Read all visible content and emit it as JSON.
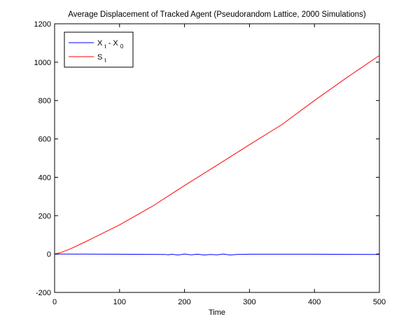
{
  "chart_data": {
    "type": "line",
    "title": "Average Displacement of Tracked Agent (Pseudorandom Lattice, 2000 Simulations)",
    "xlabel": "Time",
    "ylabel": "",
    "xlim": [
      0,
      500
    ],
    "ylim": [
      -200,
      1200
    ],
    "xticks": [
      0,
      100,
      200,
      300,
      400,
      500
    ],
    "yticks": [
      -200,
      0,
      200,
      400,
      600,
      800,
      1000,
      1200
    ],
    "grid": false,
    "legend_position": "top-left",
    "series": [
      {
        "name": "X_t - X_0",
        "label_main": "X",
        "label_sub": "t",
        "label_mid": " - X",
        "label_sub2": "0",
        "color": "#0000ff",
        "x": [
          0,
          100,
          170,
          175,
          180,
          190,
          200,
          210,
          220,
          230,
          240,
          250,
          260,
          270,
          280,
          300,
          400,
          500
        ],
        "y": [
          0,
          -1,
          -2,
          -4,
          -1,
          -5,
          0,
          -4,
          -1,
          -5,
          -2,
          -4,
          0,
          -5,
          -2,
          -1,
          -1,
          -2
        ]
      },
      {
        "name": "S_t",
        "label_main": "S",
        "label_sub": "t",
        "color": "#ff0000",
        "x": [
          0,
          10,
          25,
          50,
          75,
          100,
          150,
          200,
          250,
          300,
          350,
          400,
          450,
          500
        ],
        "y": [
          0,
          8,
          28,
          68,
          110,
          152,
          248,
          357,
          463,
          570,
          675,
          800,
          920,
          1035
        ]
      }
    ]
  }
}
